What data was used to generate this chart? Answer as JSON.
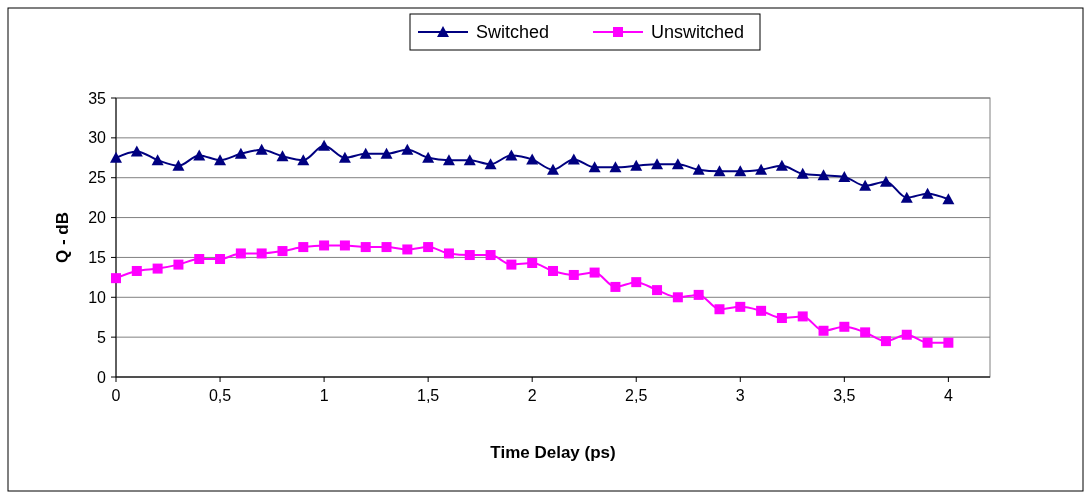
{
  "chart_data": {
    "type": "line",
    "xlabel": "Time Delay (ps)",
    "ylabel": "Q - dB",
    "x": [
      0,
      0.1,
      0.2,
      0.3,
      0.4,
      0.5,
      0.6,
      0.7,
      0.8,
      0.9,
      1,
      1.1,
      1.2,
      1.3,
      1.4,
      1.5,
      1.6,
      1.7,
      1.8,
      1.9,
      2,
      2.1,
      2.2,
      2.3,
      2.4,
      2.5,
      2.6,
      2.7,
      2.8,
      2.9,
      3,
      3.1,
      3.2,
      3.3,
      3.4,
      3.5,
      3.6,
      3.7,
      3.8,
      3.9,
      4
    ],
    "series": [
      {
        "name": "Switched",
        "color": "#000080",
        "marker": "triangle",
        "values": [
          27.5,
          28.3,
          27.2,
          26.5,
          27.8,
          27.2,
          28,
          28.5,
          27.7,
          27.2,
          29,
          27.5,
          28,
          28,
          28.5,
          27.5,
          27.2,
          27.2,
          26.7,
          27.8,
          27.3,
          26,
          27.3,
          26.3,
          26.3,
          26.5,
          26.7,
          26.7,
          26,
          25.8,
          25.8,
          26,
          26.5,
          25.5,
          25.3,
          25.1,
          24,
          24.5,
          22.5,
          23,
          22.3
        ]
      },
      {
        "name": "Unswitched",
        "color": "#ff00ff",
        "marker": "square",
        "values": [
          12.4,
          13.3,
          13.6,
          14.1,
          14.8,
          14.8,
          15.5,
          15.5,
          15.8,
          16.3,
          16.5,
          16.5,
          16.3,
          16.3,
          16,
          16.3,
          15.5,
          15.3,
          15.3,
          14.1,
          14.3,
          13.3,
          12.8,
          13.1,
          11.3,
          11.9,
          10.9,
          10,
          10.3,
          8.5,
          8.8,
          8.3,
          7.4,
          7.6,
          5.8,
          6.3,
          5.6,
          4.5,
          5.3,
          4.3,
          4.3
        ]
      }
    ],
    "xlim": [
      0,
      4.2
    ],
    "xticks": [
      0,
      {
        "value": 0.5,
        "label": "0,5"
      },
      1,
      {
        "value": 1.5,
        "label": "1,5"
      },
      2,
      {
        "value": 2.5,
        "label": "2,5"
      },
      3,
      {
        "value": 3.5,
        "label": "3,5"
      },
      4
    ],
    "ylim": [
      0,
      35
    ],
    "yticks": [
      0,
      5,
      10,
      15,
      20,
      25,
      30,
      35
    ],
    "grid": "y",
    "legend": "top"
  }
}
